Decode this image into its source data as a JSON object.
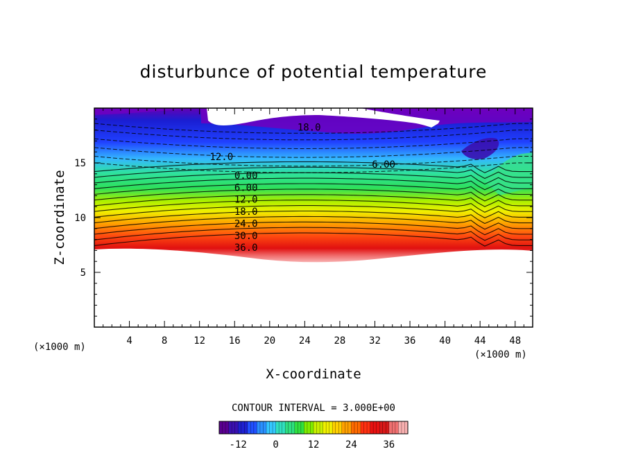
{
  "chart_data": {
    "type": "contour",
    "title": "disturbunce of potential temperature",
    "xlabel": "X-coordinate",
    "ylabel": "Z-coordinate",
    "x_unit_left": "(×1000 m)",
    "x_unit_right": "(×1000 m)",
    "xlim": [
      0,
      50
    ],
    "ylim": [
      0,
      20
    ],
    "x_ticks": [
      "4",
      "8",
      "12",
      "16",
      "20",
      "24",
      "28",
      "32",
      "36",
      "40",
      "44",
      "48"
    ],
    "y_ticks": [
      "5",
      "10",
      "15"
    ],
    "contour_interval_text": "CONTOUR INTERVAL = 3.000E+00",
    "colorbar_ticks": [
      "-12",
      "0",
      "12",
      "24",
      "36"
    ],
    "colorbar_range": [
      -18,
      42
    ],
    "contour_labels": [
      {
        "text": "18.0",
        "x": 24.5,
        "z": 18.2
      },
      {
        "text": "12.0",
        "x": 14.5,
        "z": 15.5
      },
      {
        "text": "6.00",
        "x": 33,
        "z": 14.8
      },
      {
        "text": "0.00",
        "x": 17.3,
        "z": 13.8
      },
      {
        "text": "6.00",
        "x": 17.3,
        "z": 12.7
      },
      {
        "text": "12.0",
        "x": 17.3,
        "z": 11.6
      },
      {
        "text": "18.0",
        "x": 17.3,
        "z": 10.5
      },
      {
        "text": "24.0",
        "x": 17.3,
        "z": 9.4
      },
      {
        "text": "30.0",
        "x": 17.3,
        "z": 8.3
      },
      {
        "text": "36.0",
        "x": 17.3,
        "z": 7.2
      }
    ],
    "colors": {
      "violet": "#7f00c8",
      "blue": "#1e3cff",
      "cyan": "#3fd3ff",
      "green": "#2ee05a",
      "yellow": "#f0f000",
      "orange": "#ff9a00",
      "red": "#ee1010",
      "pink": "#f8a0a0"
    }
  }
}
